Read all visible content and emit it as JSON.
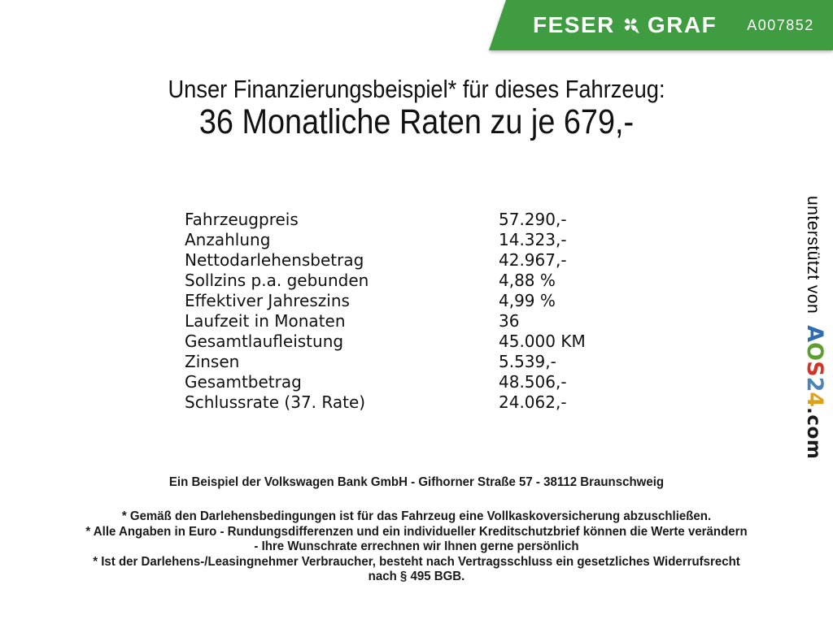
{
  "banner": {
    "brand": {
      "left": "FESER",
      "right": "GRAF"
    },
    "vehicle_code": "A007852",
    "colors": {
      "background": "#3f9c41",
      "text": "#ffffff"
    }
  },
  "title": {
    "line1": "Unser Finanzierungsbeispiel* für dieses Fahrzeug:",
    "line2": "36 Monatliche Raten zu je 679,-"
  },
  "finance_table": {
    "rows": [
      {
        "label": "Fahrzeugpreis",
        "value": "57.290,-"
      },
      {
        "label": "Anzahlung",
        "value": "14.323,-"
      },
      {
        "label": "Nettodarlehensbetrag",
        "value": "42.967,-"
      },
      {
        "label": "Sollzins p.a. gebunden",
        "value": "4,88 %"
      },
      {
        "label": "Effektiver Jahreszins",
        "value": "4,99 %"
      },
      {
        "label": "Laufzeit in Monaten",
        "value": "36"
      },
      {
        "label": "Gesamtlaufleistung",
        "value": "45.000 KM"
      },
      {
        "label": "Zinsen",
        "value": "5.539,-"
      },
      {
        "label": "Gesamtbetrag",
        "value": "48.506,-"
      },
      {
        "label": "Schlussrate (37. Rate)",
        "value": "24.062,-"
      }
    ]
  },
  "sidebar": {
    "prefix": "unterstützt von",
    "logo": {
      "letters": [
        {
          "char": "A",
          "color": "#2e6cb5"
        },
        {
          "char": "O",
          "color": "#5d9e2c"
        },
        {
          "char": "S",
          "color": "#d13428"
        },
        {
          "char": "2",
          "color": "#4a85b8"
        },
        {
          "char": "4",
          "color": "#dda11c"
        }
      ],
      "suffix": ".com"
    }
  },
  "footer": {
    "bank_line": "Ein Beispiel der Volkswagen Bank GmbH - Gifhorner Straße 57 - 38112 Braunschweig",
    "disclaimer_lines": [
      "* Gemäß den Darlehensbedingungen ist für das Fahrzeug eine Vollkaskoversicherung abzuschließen.",
      "* Alle Angaben in Euro - Rundungsdifferenzen und ein individueller Kreditschutzbrief können die Werte verändern",
      "- Ihre Wunschrate errechnen wir Ihnen gerne persönlich",
      "* Ist der Darlehens-/Leasingnehmer Verbraucher, besteht nach Vertragsschluss ein gesetzliches Widerrufsrecht",
      "nach § 495 BGB."
    ]
  }
}
